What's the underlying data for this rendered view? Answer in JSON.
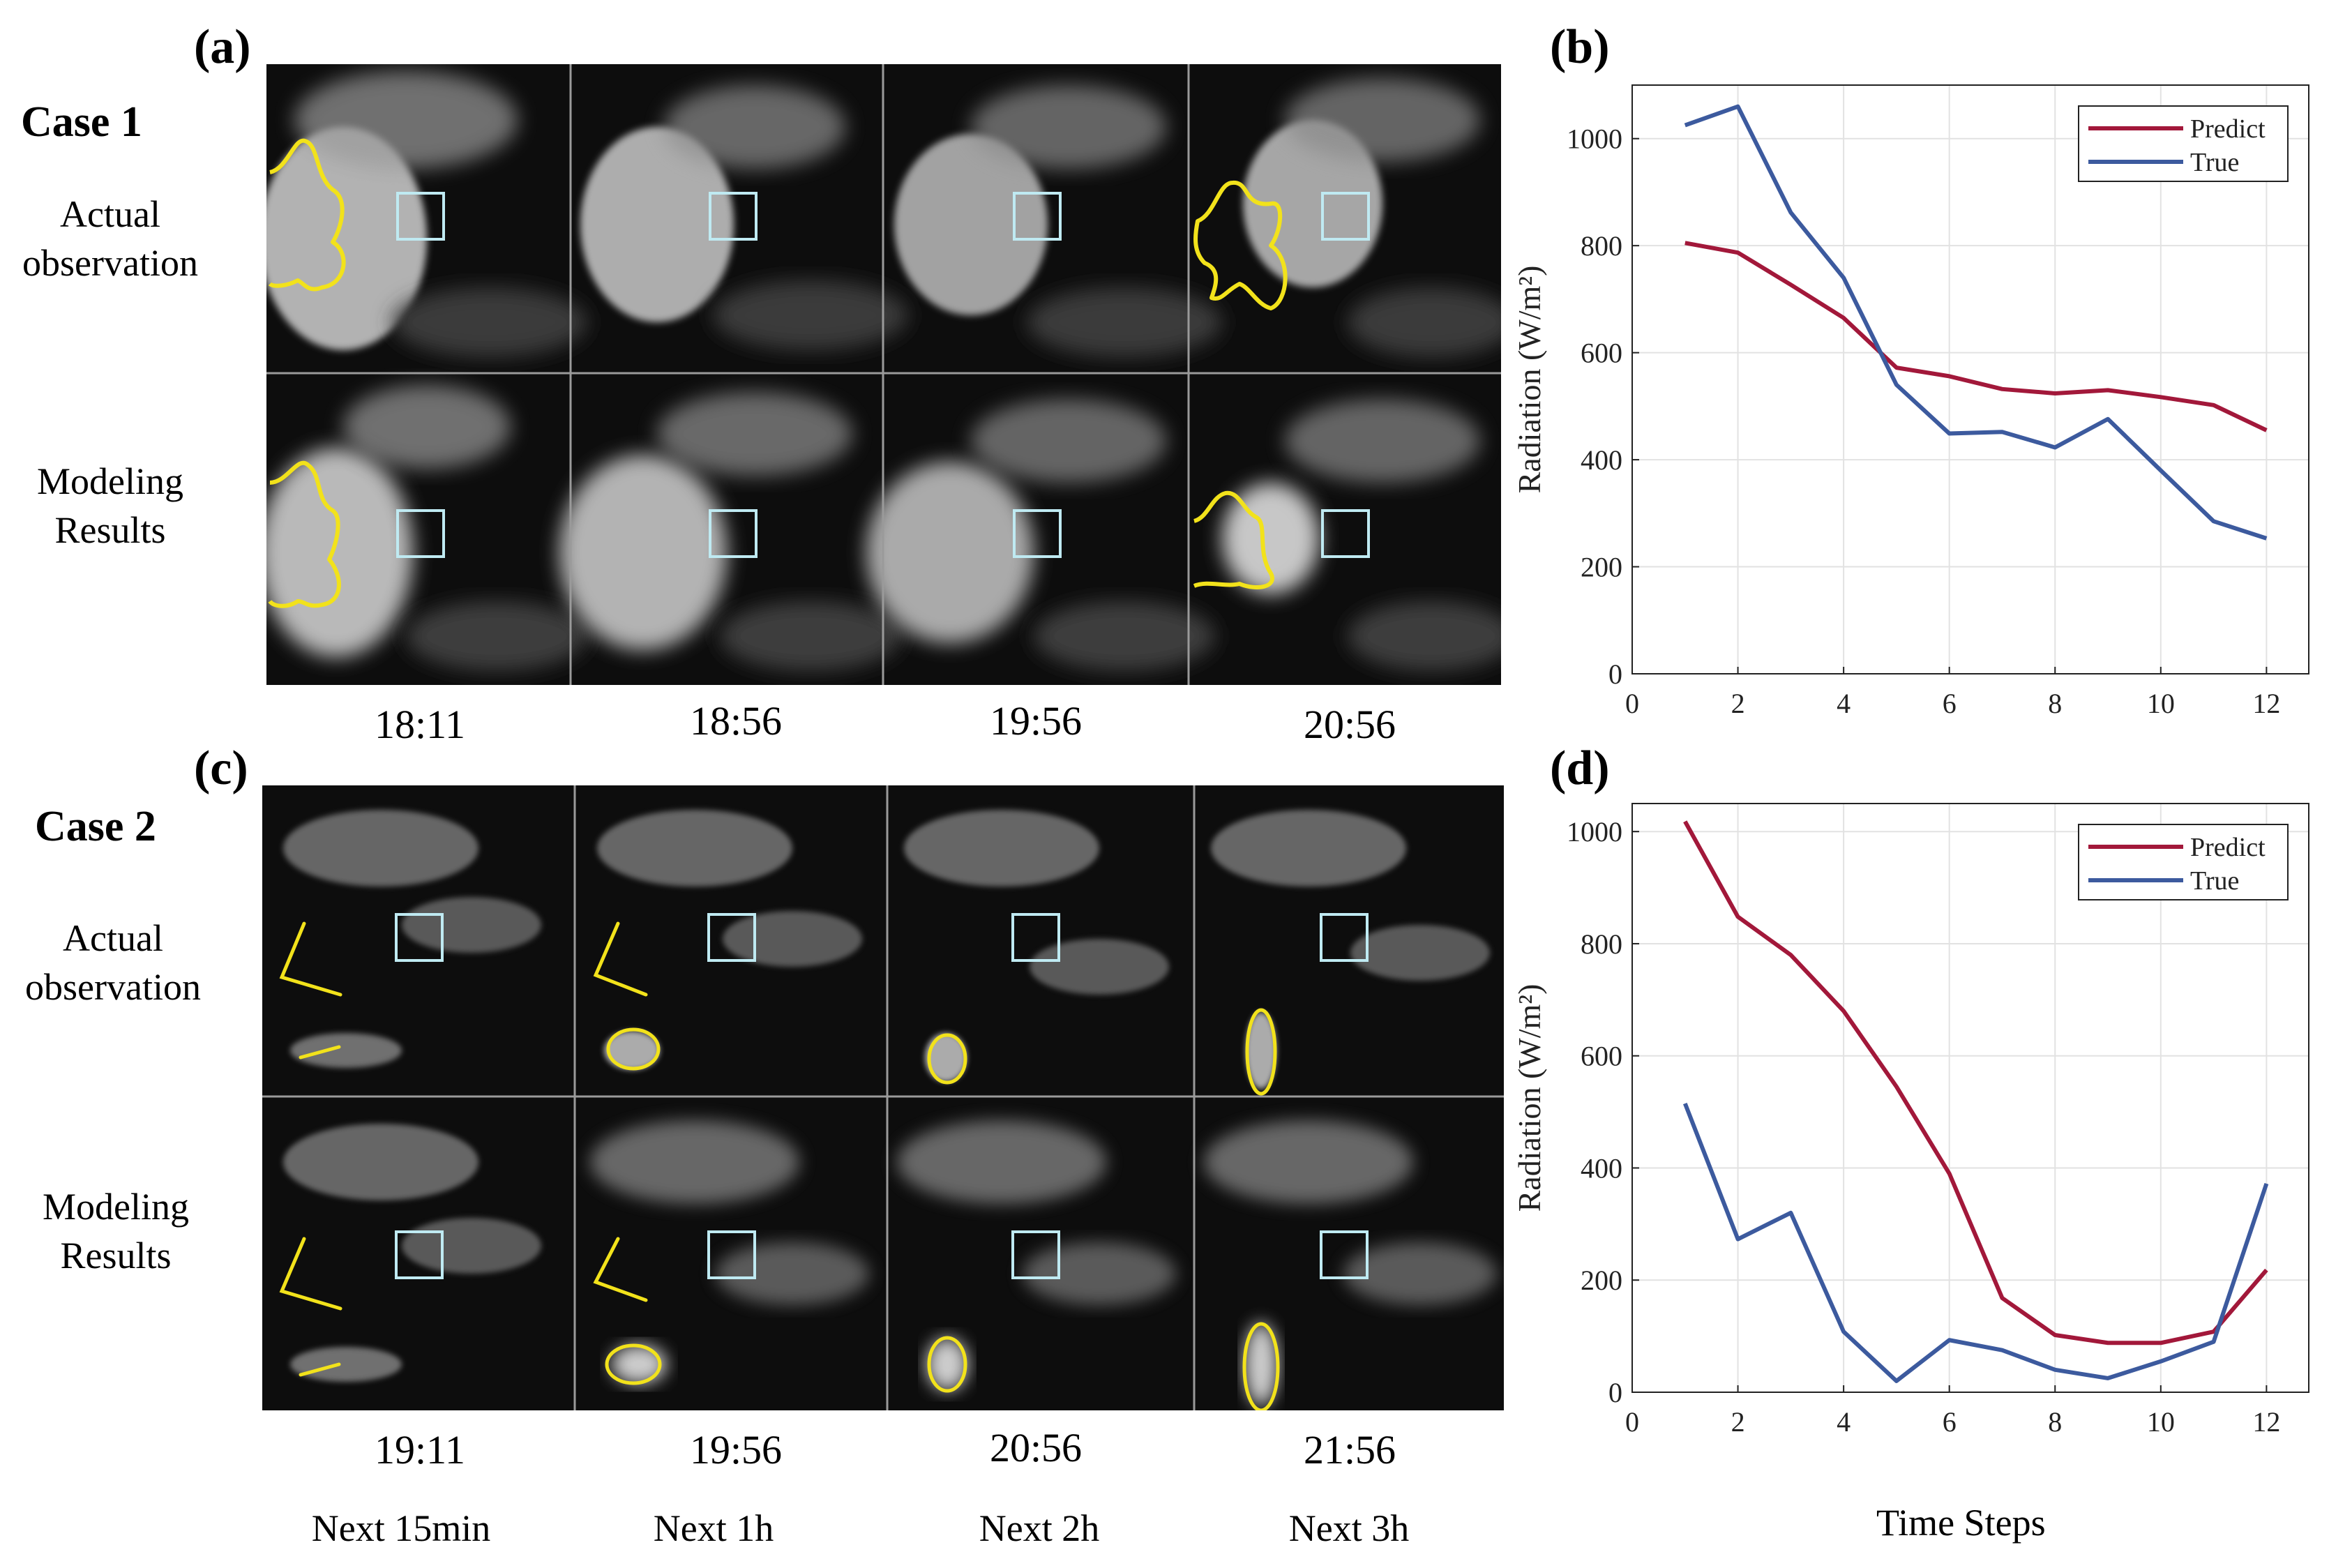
{
  "panels": {
    "a": {
      "letter": "(a)",
      "case_title": "Case 1",
      "row_labels": [
        [
          "Actual",
          "observation"
        ],
        [
          "Modeling",
          "Results"
        ]
      ],
      "times": [
        "18:11",
        "18:56",
        "19:56",
        "20:56"
      ]
    },
    "c": {
      "letter": "(c)",
      "case_title": "Case 2",
      "row_labels": [
        [
          "Actual",
          "observation"
        ],
        [
          "Modeling",
          "Results"
        ]
      ],
      "times": [
        "19:11",
        "19:56",
        "20:56",
        "21:56"
      ]
    },
    "b": {
      "letter": "(b)"
    },
    "d": {
      "letter": "(d)"
    }
  },
  "horizons": [
    "Next 15min",
    "Next 1h",
    "Next 2h",
    "Next 3h"
  ],
  "colors": {
    "predict": "#a2183a",
    "true": "#3c5a9e",
    "outline": "#f2e21b",
    "box": "#bfeaf2"
  },
  "chart_data": [
    {
      "id": "b",
      "type": "line",
      "x": [
        1,
        2,
        3,
        4,
        5,
        6,
        7,
        8,
        9,
        10,
        11,
        12
      ],
      "series": [
        {
          "name": "Predict",
          "values": [
            805,
            787,
            727,
            665,
            572,
            556,
            532,
            524,
            530,
            517,
            502,
            455
          ]
        },
        {
          "name": "True",
          "values": [
            1025,
            1060,
            862,
            740,
            540,
            449,
            452,
            423,
            476,
            380,
            285,
            253
          ]
        }
      ],
      "xlim": [
        0,
        12.8
      ],
      "ylim": [
        0,
        1100
      ],
      "xticks": [
        0,
        2,
        4,
        6,
        8,
        10,
        12
      ],
      "yticks": [
        0,
        200,
        400,
        600,
        800,
        1000
      ],
      "xlabel": "",
      "ylabel": "Radiation (W/m²)",
      "legend": "top-right",
      "grid": true
    },
    {
      "id": "d",
      "type": "line",
      "x": [
        1,
        2,
        3,
        4,
        5,
        6,
        7,
        8,
        9,
        10,
        11,
        12
      ],
      "series": [
        {
          "name": "Predict",
          "values": [
            1018,
            848,
            780,
            680,
            545,
            390,
            168,
            102,
            88,
            88,
            108,
            218
          ]
        },
        {
          "name": "True",
          "values": [
            515,
            273,
            320,
            108,
            20,
            93,
            75,
            40,
            25,
            55,
            90,
            372
          ]
        }
      ],
      "xlim": [
        0,
        12.8
      ],
      "ylim": [
        0,
        1050
      ],
      "xticks": [
        0,
        2,
        4,
        6,
        8,
        10,
        12
      ],
      "yticks": [
        0,
        200,
        400,
        600,
        800,
        1000
      ],
      "xlabel": "Time Steps",
      "ylabel": "Radiation (W/m²)",
      "legend": "top-right",
      "grid": true
    }
  ]
}
